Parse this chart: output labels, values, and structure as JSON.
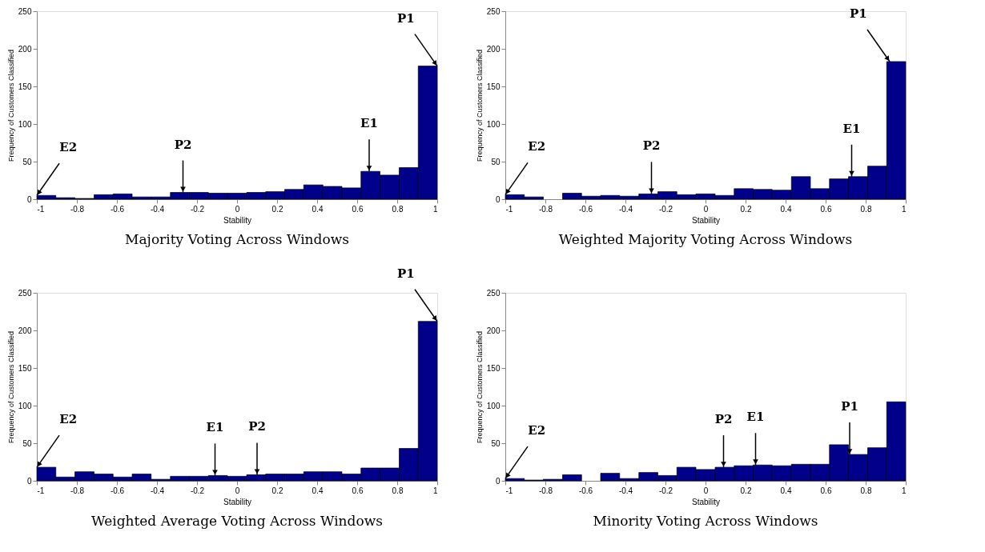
{
  "chart_data": [
    {
      "type": "histogram",
      "title": "Majority Voting Across Windows",
      "xlabel": "Stability",
      "ylabel": "Frequency of Customers Classified",
      "color": "#00008b",
      "grid": false,
      "bins": [
        -1,
        -0.905,
        -0.81,
        -0.714,
        -0.619,
        -0.524,
        -0.429,
        -0.333,
        -0.238,
        -0.143,
        -0.048,
        0.048,
        0.143,
        0.238,
        0.333,
        0.429,
        0.524,
        0.619,
        0.714,
        0.81,
        0.905,
        1
      ],
      "values": [
        5,
        2,
        1,
        6,
        7,
        3,
        3,
        9,
        9,
        8,
        8,
        9,
        10,
        13,
        19,
        17,
        15,
        37,
        32,
        42,
        177
      ],
      "xlim": [
        -1,
        1
      ],
      "ylim": [
        0,
        250
      ],
      "xticks": [
        -1,
        -0.8,
        -0.6,
        -0.4,
        -0.2,
        0,
        0.2,
        0.4,
        0.6,
        0.8,
        1
      ],
      "yticks": [
        0,
        50,
        100,
        150,
        200,
        250
      ],
      "annotations": [
        {
          "text": "E2",
          "x": -1,
          "y": 5
        },
        {
          "text": "P2",
          "x": -0.27,
          "y": 9
        },
        {
          "text": "E1",
          "x": 0.66,
          "y": 37
        },
        {
          "text": "P1",
          "x": 1,
          "y": 177
        }
      ]
    },
    {
      "type": "histogram",
      "title": "Weighted Majority Voting Across Windows",
      "xlabel": "Stability",
      "ylabel": "Frequency of Customers Classified",
      "color": "#00008b",
      "grid": false,
      "bins": [
        -1,
        -0.905,
        -0.81,
        -0.714,
        -0.619,
        -0.524,
        -0.429,
        -0.333,
        -0.238,
        -0.143,
        -0.048,
        0.048,
        0.143,
        0.238,
        0.333,
        0.429,
        0.524,
        0.619,
        0.714,
        0.81,
        0.905,
        1
      ],
      "values": [
        6,
        3,
        0,
        8,
        4,
        5,
        4,
        7,
        10,
        6,
        7,
        5,
        14,
        13,
        12,
        30,
        14,
        27,
        30,
        44,
        183
      ],
      "xlim": [
        -1,
        1
      ],
      "ylim": [
        0,
        250
      ],
      "xticks": [
        -1,
        -0.8,
        -0.6,
        -0.4,
        -0.2,
        0,
        0.2,
        0.4,
        0.6,
        0.8,
        1
      ],
      "yticks": [
        0,
        50,
        100,
        150,
        200,
        250
      ],
      "annotations": [
        {
          "text": "E2",
          "x": -1,
          "y": 6
        },
        {
          "text": "P2",
          "x": -0.27,
          "y": 7
        },
        {
          "text": "E1",
          "x": 0.73,
          "y": 30
        },
        {
          "text": "P1",
          "x": 0.92,
          "y": 183
        }
      ]
    },
    {
      "type": "histogram",
      "title": "Weighted Average Voting Across Windows",
      "xlabel": "Stability",
      "ylabel": "Frequency of Customers Classified",
      "color": "#00008b",
      "grid": false,
      "bins": [
        -1,
        -0.905,
        -0.81,
        -0.714,
        -0.619,
        -0.524,
        -0.429,
        -0.333,
        -0.238,
        -0.143,
        -0.048,
        0.048,
        0.143,
        0.238,
        0.333,
        0.429,
        0.524,
        0.619,
        0.714,
        0.81,
        0.905,
        1
      ],
      "values": [
        18,
        5,
        12,
        9,
        5,
        9,
        2,
        6,
        6,
        7,
        6,
        8,
        9,
        9,
        12,
        12,
        9,
        17,
        17,
        43,
        212
      ],
      "xlim": [
        -1,
        1
      ],
      "ylim": [
        0,
        250
      ],
      "xticks": [
        -1,
        -0.8,
        -0.6,
        -0.4,
        -0.2,
        0,
        0.2,
        0.4,
        0.6,
        0.8,
        1
      ],
      "yticks": [
        0,
        50,
        100,
        150,
        200,
        250
      ],
      "annotations": [
        {
          "text": "E2",
          "x": -1,
          "y": 18
        },
        {
          "text": "E1",
          "x": -0.11,
          "y": 7
        },
        {
          "text": "P2",
          "x": 0.1,
          "y": 8
        },
        {
          "text": "P1",
          "x": 1,
          "y": 212
        }
      ]
    },
    {
      "type": "histogram",
      "title": "Minority Voting Across Windows",
      "xlabel": "Stability",
      "ylabel": "Frequency of Customers Classified",
      "color": "#00008b",
      "grid": false,
      "bins": [
        -1,
        -0.905,
        -0.81,
        -0.714,
        -0.619,
        -0.524,
        -0.429,
        -0.333,
        -0.238,
        -0.143,
        -0.048,
        0.048,
        0.143,
        0.238,
        0.333,
        0.429,
        0.524,
        0.619,
        0.714,
        0.81,
        0.905,
        1
      ],
      "values": [
        3,
        1,
        2,
        8,
        0,
        10,
        3,
        11,
        7,
        18,
        15,
        18,
        20,
        21,
        20,
        22,
        22,
        48,
        35,
        44,
        105
      ],
      "xlim": [
        -1,
        1
      ],
      "ylim": [
        0,
        250
      ],
      "xticks": [
        -1,
        -0.8,
        -0.6,
        -0.4,
        -0.2,
        0,
        0.2,
        0.4,
        0.6,
        0.8,
        1
      ],
      "yticks": [
        0,
        50,
        100,
        150,
        200,
        250
      ],
      "annotations": [
        {
          "text": "E2",
          "x": -1,
          "y": 3
        },
        {
          "text": "P2",
          "x": 0.09,
          "y": 18
        },
        {
          "text": "E1",
          "x": 0.25,
          "y": 21
        },
        {
          "text": "P1",
          "x": 0.72,
          "y": 35
        }
      ]
    }
  ]
}
